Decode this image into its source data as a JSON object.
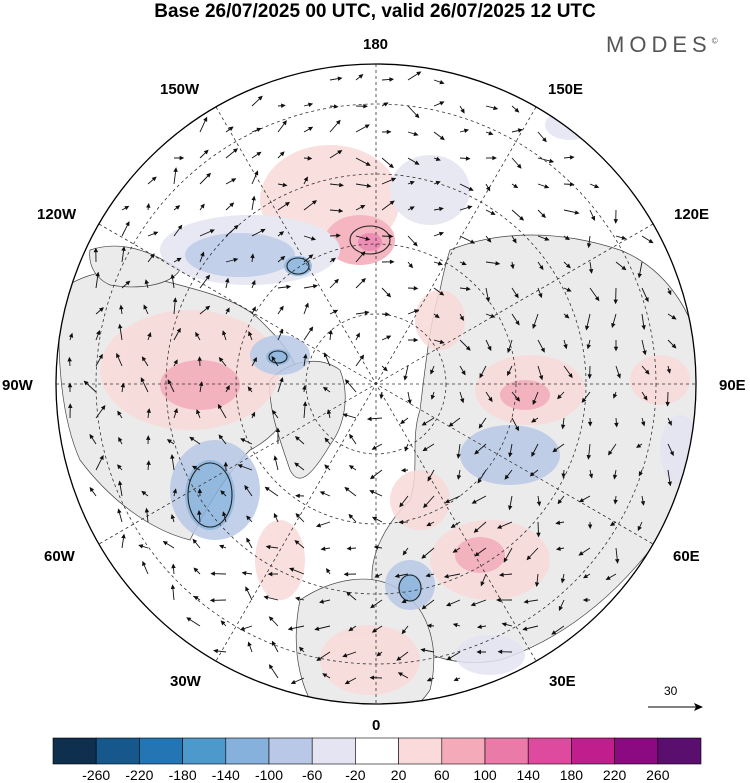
{
  "header": {
    "title": "Base 26/07/2025 00 UTC, valid 26/07/2025 12 UTC",
    "brand": "MODES",
    "brand_mark": "©"
  },
  "map": {
    "projection": "north polar stereographic",
    "longitude_labels": {
      "top": "180",
      "top_left": "150W",
      "top_right": "150E",
      "upper_left": "120W",
      "upper_right": "120E",
      "left": "90W",
      "right": "90E",
      "lower_left": "60W",
      "lower_right": "60E",
      "bottom_left": "30W",
      "bottom_right": "30E",
      "bottom": "0"
    },
    "vector_scale": {
      "value": "30",
      "icon": "arrow-right-icon"
    }
  },
  "colorbar": {
    "ticks": [
      "-260",
      "-220",
      "-180",
      "-140",
      "-100",
      "-60",
      "-20",
      "20",
      "60",
      "100",
      "140",
      "180",
      "220",
      "260"
    ],
    "colors": [
      "#0e2f4e",
      "#16588c",
      "#2375b3",
      "#4d99cc",
      "#86b1dc",
      "#b9c8e6",
      "#e4e4f2",
      "#ffffff",
      "#fadada",
      "#f4aab8",
      "#ea7aa8",
      "#de4a9e",
      "#c01e8c",
      "#8b0a82",
      "#5a0e6e"
    ]
  }
}
